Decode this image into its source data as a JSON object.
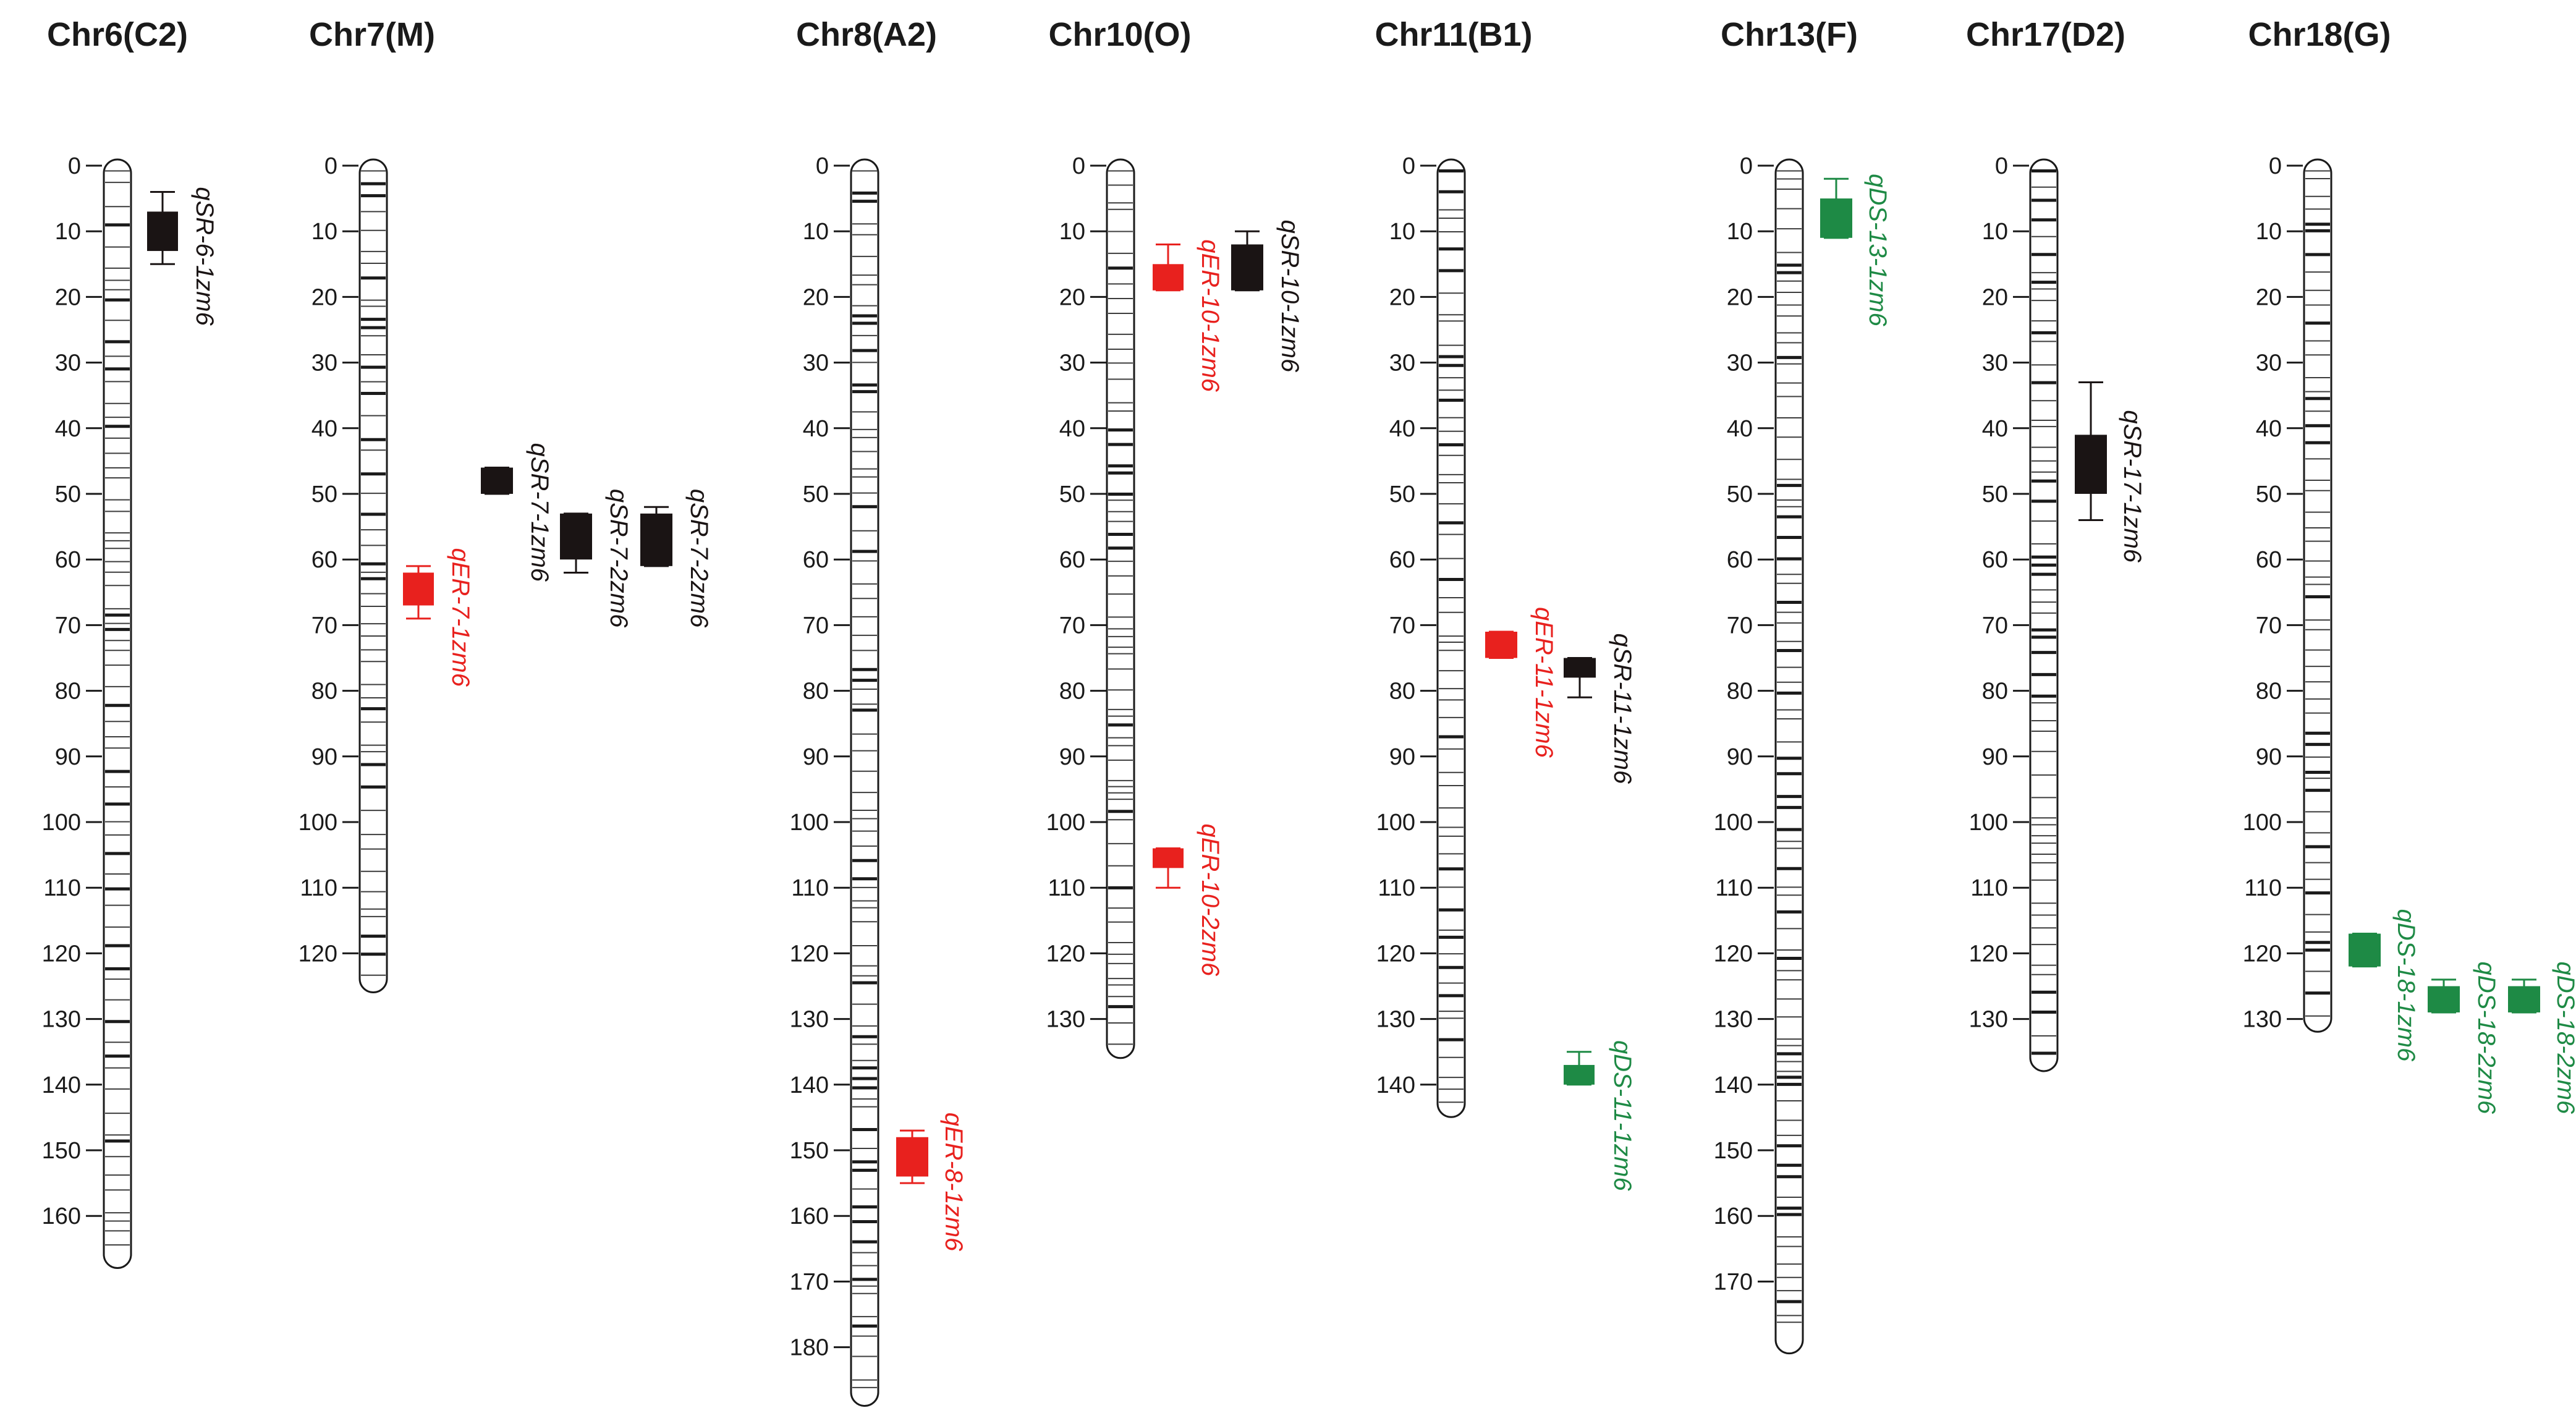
{
  "figure": {
    "type": "genetic-linkage-map",
    "colors": {
      "SR": "#1a1414",
      "ER": "#e8211e",
      "DS": "#1e8a45",
      "axis": "#1a1a1a",
      "marker": "#1a1a1a"
    }
  },
  "chromosomes": [
    {
      "name": "Chr6(C2)",
      "length": 167,
      "tick_step": 10,
      "ticks": [
        "0",
        "10",
        "20",
        "30",
        "40",
        "50",
        "60",
        "70",
        "80",
        "90",
        "100",
        "110",
        "120",
        "130",
        "140",
        "150",
        "160"
      ],
      "qtls": [
        {
          "label": "qSR-6-1zm6",
          "trait": "SR",
          "start": 7,
          "end": 13,
          "ci": [
            4,
            15
          ]
        }
      ]
    },
    {
      "name": "Chr7(M)",
      "length": 125,
      "tick_step": 10,
      "ticks": [
        "0",
        "10",
        "20",
        "30",
        "40",
        "50",
        "60",
        "70",
        "80",
        "90",
        "100",
        "110",
        "120"
      ],
      "qtls": [
        {
          "label": "qER-7-1zm6",
          "trait": "ER",
          "start": 62,
          "end": 67,
          "ci": [
            61,
            69
          ]
        },
        {
          "label": "qSR-7-1zm6",
          "trait": "SR",
          "start": 46,
          "end": 50,
          "ci": [
            46,
            50
          ]
        },
        {
          "label": "qSR-7-2zm6",
          "trait": "SR",
          "start": 53,
          "end": 60,
          "ci": [
            53,
            62
          ]
        },
        {
          "label": "qSR-7-2zm6",
          "trait": "SR",
          "start": 53,
          "end": 61,
          "ci": [
            52,
            61
          ]
        }
      ]
    },
    {
      "name": "Chr8(A2)",
      "length": 188,
      "tick_step": 10,
      "ticks": [
        "0",
        "10",
        "20",
        "30",
        "40",
        "50",
        "60",
        "70",
        "80",
        "90",
        "100",
        "110",
        "120",
        "130",
        "140",
        "150",
        "160",
        "170",
        "180"
      ],
      "qtls": [
        {
          "label": "qER-8-1zm6",
          "trait": "ER",
          "start": 148,
          "end": 154,
          "ci": [
            147,
            155
          ]
        }
      ]
    },
    {
      "name": "Chr10(O)",
      "length": 135,
      "tick_step": 10,
      "ticks": [
        "0",
        "10",
        "20",
        "30",
        "40",
        "50",
        "60",
        "70",
        "80",
        "90",
        "100",
        "110",
        "120",
        "130"
      ],
      "qtls": [
        {
          "label": "qER-10-1zm6",
          "trait": "ER",
          "start": 15,
          "end": 19,
          "ci": [
            12,
            19
          ]
        },
        {
          "label": "qSR-10-1zm6",
          "trait": "SR",
          "start": 12,
          "end": 19,
          "ci": [
            10,
            19
          ]
        },
        {
          "label": "qER-10-2zm6",
          "trait": "ER",
          "start": 104,
          "end": 107,
          "ci": [
            104,
            110
          ]
        }
      ]
    },
    {
      "name": "Chr11(B1)",
      "length": 144,
      "tick_step": 10,
      "ticks": [
        "0",
        "10",
        "20",
        "30",
        "40",
        "50",
        "60",
        "70",
        "80",
        "90",
        "100",
        "110",
        "120",
        "130",
        "140"
      ],
      "qtls": [
        {
          "label": "qER-11-1zm6",
          "trait": "ER",
          "start": 71,
          "end": 75,
          "ci": [
            71,
            75
          ]
        },
        {
          "label": "qSR-11-1zm6",
          "trait": "SR",
          "start": 75,
          "end": 78,
          "ci": [
            75,
            81
          ]
        },
        {
          "label": "qDS-11-1zm6",
          "trait": "DS",
          "start": 137,
          "end": 140,
          "ci": [
            135,
            140
          ]
        }
      ]
    },
    {
      "name": "Chr13(F)",
      "length": 180,
      "tick_step": 10,
      "ticks": [
        "0",
        "10",
        "20",
        "30",
        "40",
        "50",
        "60",
        "70",
        "80",
        "90",
        "100",
        "110",
        "120",
        "130",
        "140",
        "150",
        "160",
        "170"
      ],
      "qtls": [
        {
          "label": "qDS-13-1zm6",
          "trait": "DS",
          "start": 5,
          "end": 11,
          "ci": [
            2,
            11
          ]
        }
      ]
    },
    {
      "name": "Chr17(D2)",
      "length": 137,
      "tick_step": 10,
      "ticks": [
        "0",
        "10",
        "20",
        "30",
        "40",
        "50",
        "60",
        "70",
        "80",
        "90",
        "100",
        "110",
        "120",
        "130"
      ],
      "qtls": [
        {
          "label": "qSR-17-1zm6",
          "trait": "SR",
          "start": 41,
          "end": 50,
          "ci": [
            33,
            54
          ]
        }
      ]
    },
    {
      "name": "Chr18(G)",
      "length": 131,
      "tick_step": 10,
      "ticks": [
        "0",
        "10",
        "20",
        "30",
        "40",
        "50",
        "60",
        "70",
        "80",
        "90",
        "100",
        "110",
        "120",
        "130"
      ],
      "qtls": [
        {
          "label": "qDS-18-1zm6",
          "trait": "DS",
          "start": 117,
          "end": 122,
          "ci": [
            117,
            122
          ]
        },
        {
          "label": "qDS-18-2zm6",
          "trait": "DS",
          "start": 125,
          "end": 129,
          "ci": [
            124,
            129
          ]
        },
        {
          "label": "qDS-18-2zm6",
          "trait": "DS",
          "start": 125,
          "end": 129,
          "ci": [
            124,
            129
          ]
        }
      ]
    }
  ]
}
